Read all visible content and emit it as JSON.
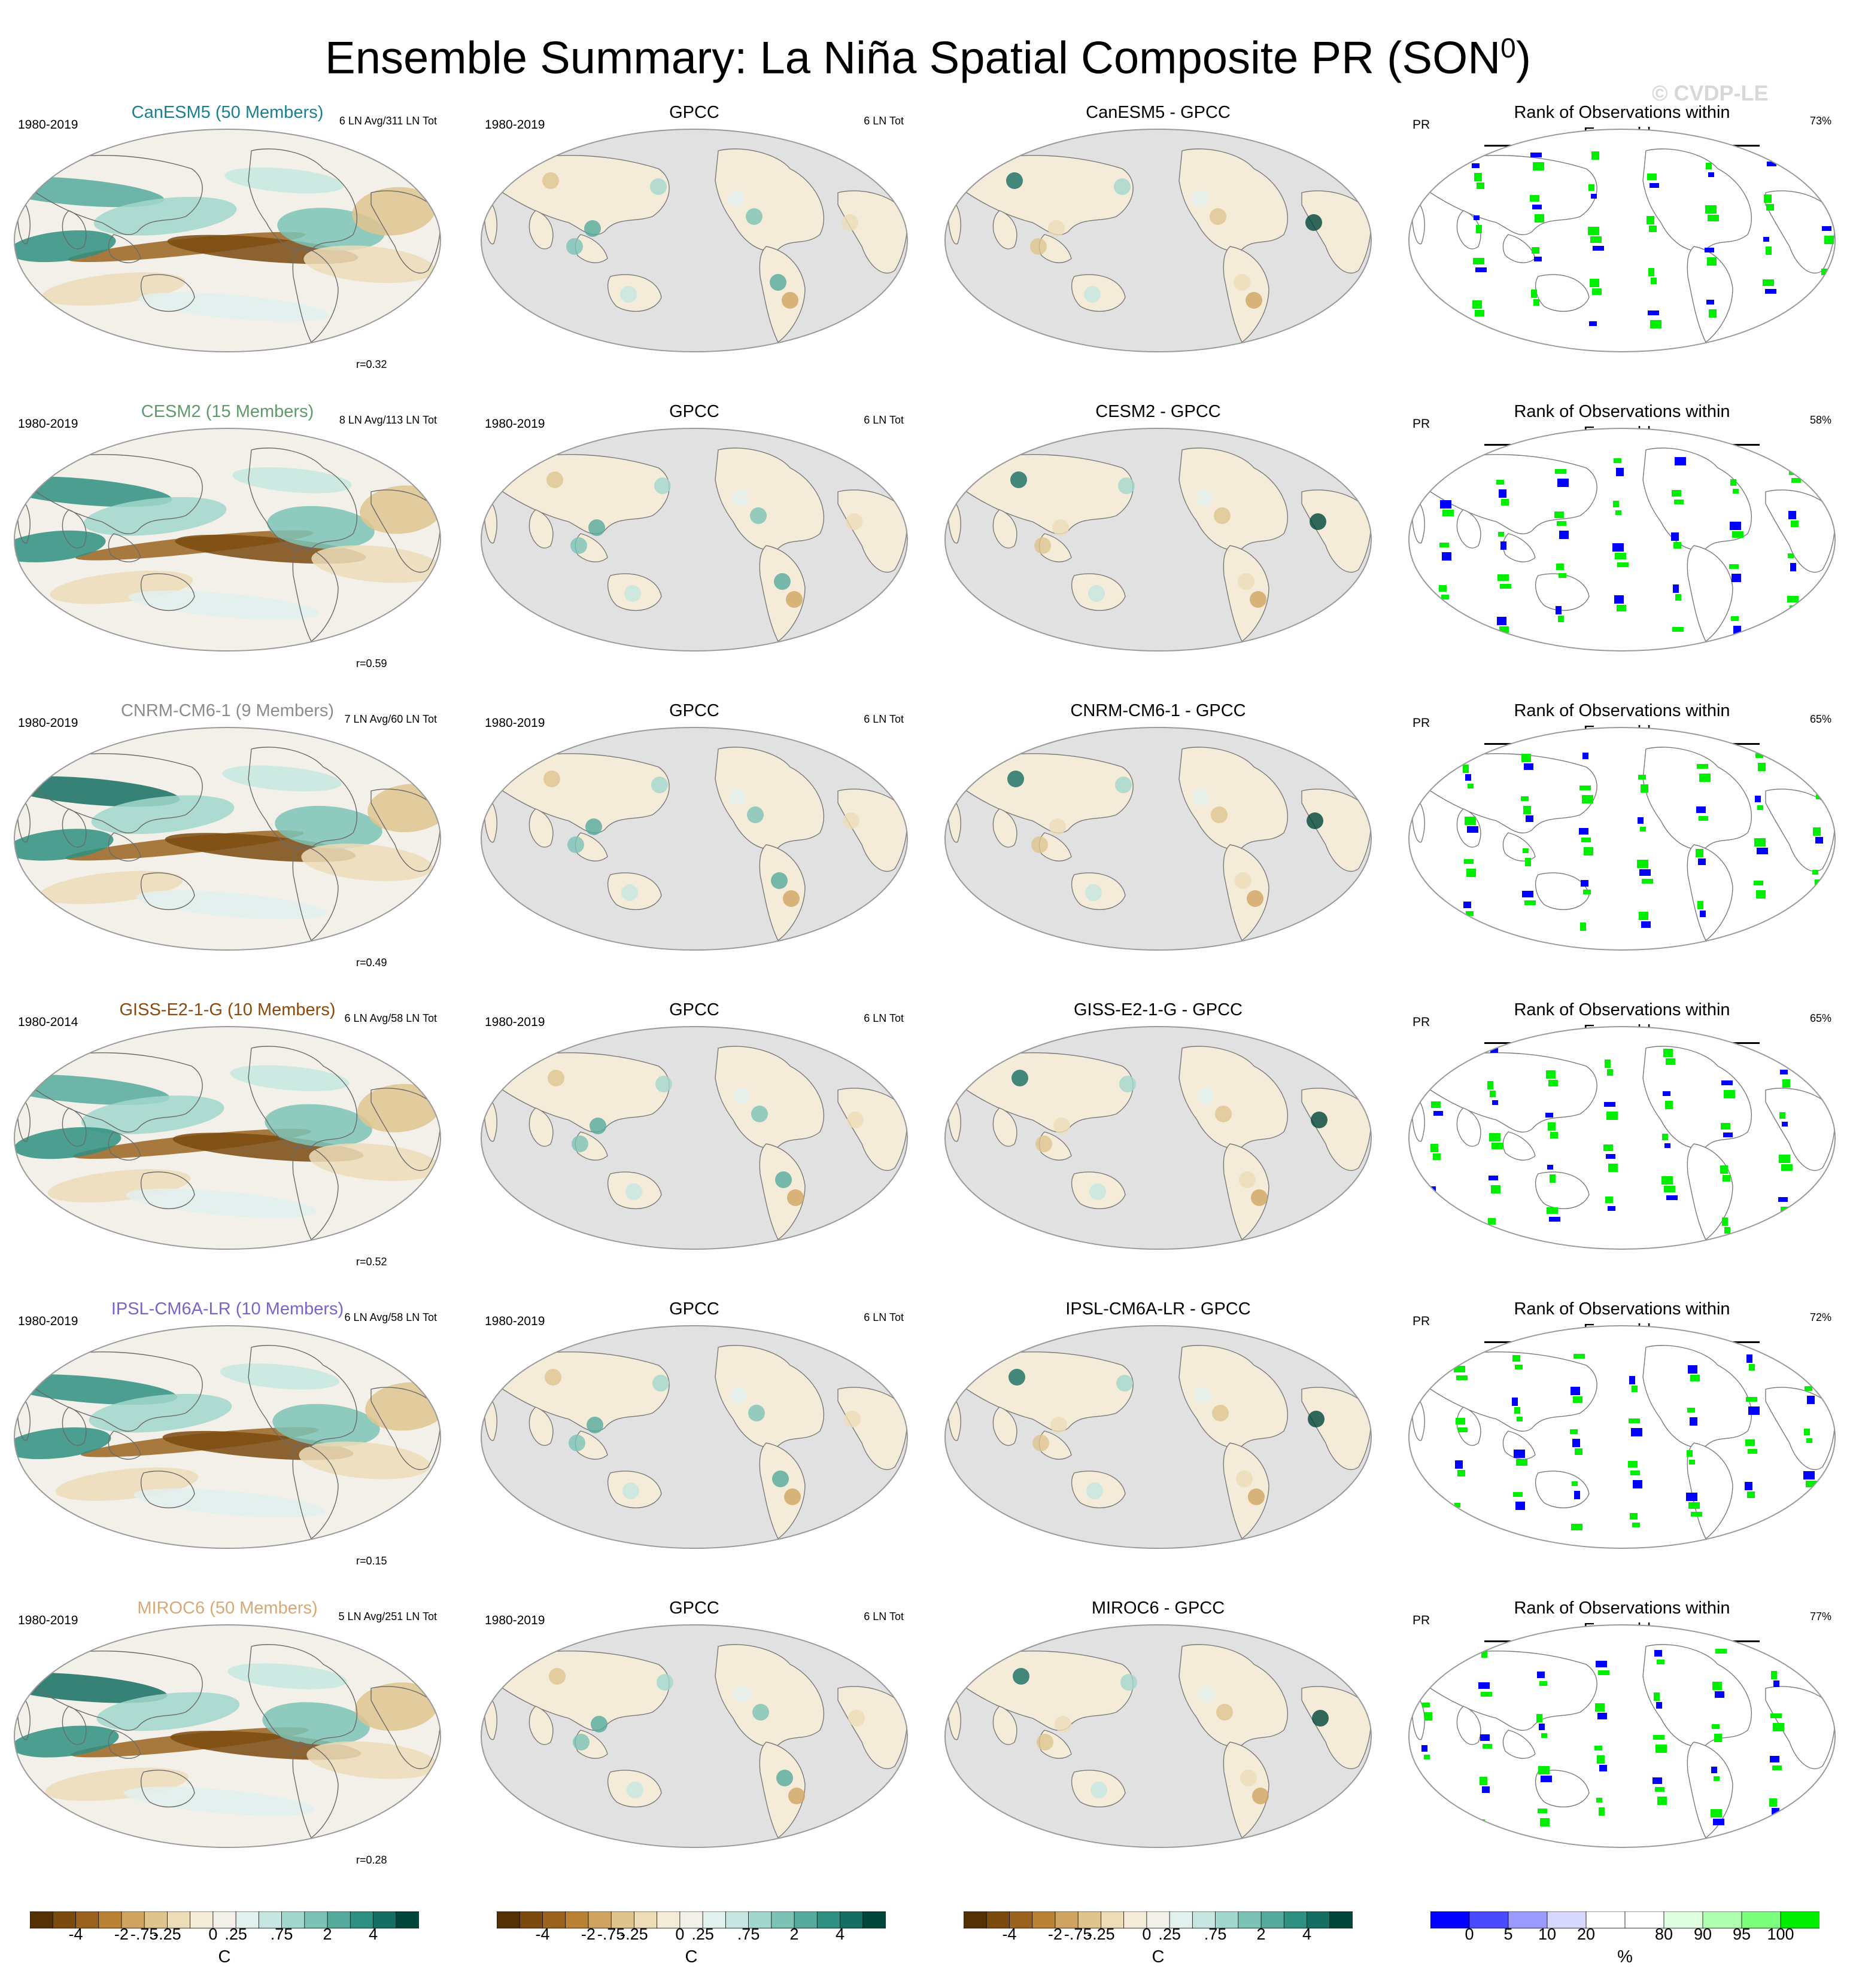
{
  "title": "Ensemble Summary: La Niña Spatial Composite PR (SON",
  "title_sup": "0",
  "title_close": ")",
  "watermark": "© CVDP-LE",
  "colors": {
    "model_CanESM5": "#1a7f8e",
    "model_CESM2": "#5f9a6b",
    "model_CNRM": "#8c8c8c",
    "model_GISS": "#8b4a0c",
    "model_IPSL": "#7b63c8",
    "model_MIROC6": "#d7a978"
  },
  "rows": [
    {
      "model": {
        "title": "CanESM5 (50 Members)",
        "years": "1980-2019",
        "counts": "6 LN Avg/311 LN Tot",
        "r": "r=0.32",
        "color": "#1a7f8e"
      },
      "obs": {
        "title": "GPCC",
        "years": "1980-2019",
        "counts": "6 LN Tot"
      },
      "diff": {
        "title": "CanESM5 - GPCC"
      },
      "rank": {
        "title": "Rank of Observations within Ensemble",
        "var": "PR",
        "pct": "73%"
      }
    },
    {
      "model": {
        "title": "CESM2 (15 Members)",
        "years": "1980-2019",
        "counts": "8 LN Avg/113 LN Tot",
        "r": "r=0.59",
        "color": "#5f9a6b"
      },
      "obs": {
        "title": "GPCC",
        "years": "1980-2019",
        "counts": "6 LN Tot"
      },
      "diff": {
        "title": "CESM2 - GPCC"
      },
      "rank": {
        "title": "Rank of Observations within Ensemble",
        "var": "PR",
        "pct": "58%"
      }
    },
    {
      "model": {
        "title": "CNRM-CM6-1 (9 Members)",
        "years": "1980-2019",
        "counts": "7 LN Avg/60 LN Tot",
        "r": "r=0.49",
        "color": "#8c8c8c"
      },
      "obs": {
        "title": "GPCC",
        "years": "1980-2019",
        "counts": "6 LN Tot"
      },
      "diff": {
        "title": "CNRM-CM6-1 - GPCC"
      },
      "rank": {
        "title": "Rank of Observations within Ensemble",
        "var": "PR",
        "pct": "65%"
      }
    },
    {
      "model": {
        "title": "GISS-E2-1-G (10 Members)",
        "years": "1980-2014",
        "counts": "6 LN Avg/58 LN Tot",
        "r": "r=0.52",
        "color": "#8b4a0c"
      },
      "obs": {
        "title": "GPCC",
        "years": "1980-2019",
        "counts": "6 LN Tot"
      },
      "diff": {
        "title": "GISS-E2-1-G - GPCC"
      },
      "rank": {
        "title": "Rank of Observations within Ensemble",
        "var": "PR",
        "pct": "65%"
      }
    },
    {
      "model": {
        "title": "IPSL-CM6A-LR (10 Members)",
        "years": "1980-2019",
        "counts": "6 LN Avg/58 LN Tot",
        "r": "r=0.15",
        "color": "#7b63c8"
      },
      "obs": {
        "title": "GPCC",
        "years": "1980-2019",
        "counts": "6 LN Tot"
      },
      "diff": {
        "title": "IPSL-CM6A-LR - GPCC"
      },
      "rank": {
        "title": "Rank of Observations within Ensemble",
        "var": "PR",
        "pct": "72%"
      }
    },
    {
      "model": {
        "title": "MIROC6 (50 Members)",
        "years": "1980-2019",
        "counts": "5 LN Avg/251 LN Tot",
        "r": "r=0.28",
        "color": "#d7a978"
      },
      "obs": {
        "title": "GPCC",
        "years": "1980-2019",
        "counts": "6 LN Tot"
      },
      "diff": {
        "title": "MIROC6 - GPCC"
      },
      "rank": {
        "title": "Rank of Observations within Ensemble",
        "var": "PR",
        "pct": "77%"
      }
    }
  ],
  "colorbars": {
    "diverging": {
      "colors": [
        "#543005",
        "#7a4a0f",
        "#9a6420",
        "#b98235",
        "#cfa461",
        "#dfc48e",
        "#ecdcb8",
        "#f4ecd8",
        "#f2f0e8",
        "#e2f0ee",
        "#c6e7e1",
        "#a2d7cd",
        "#7cc3b6",
        "#55aa9c",
        "#2f8f80",
        "#156e61",
        "#00463a"
      ],
      "ticks": [
        "-4",
        "-2",
        "-.75",
        "-.25",
        "0",
        ".25",
        ".75",
        "2",
        "4"
      ],
      "unit": "C"
    },
    "rank": {
      "colors": [
        "#0000ff",
        "#4a4aff",
        "#9a9aff",
        "#d8d8ff",
        "#ffffff",
        "#ffffff",
        "#e0ffe0",
        "#b0ffb0",
        "#7cff7c",
        "#00ee00"
      ],
      "ticks": [
        "0",
        "5",
        "10",
        "20",
        "80",
        "90",
        "95",
        "100"
      ],
      "unit": "%"
    }
  }
}
